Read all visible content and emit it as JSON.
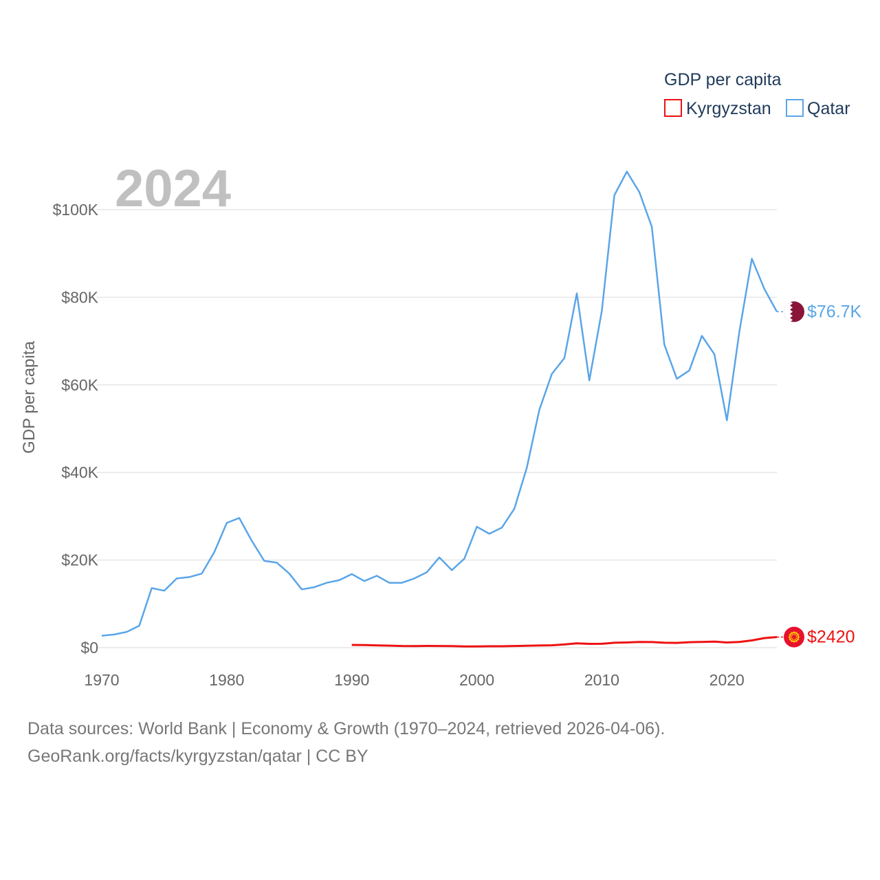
{
  "chart_data": {
    "type": "line",
    "current_year_label": "2024",
    "ylabel": "GDP per capita",
    "xlim": [
      1970,
      2024
    ],
    "ylim": [
      0,
      110000
    ],
    "y_ticks": [
      0,
      20000,
      40000,
      60000,
      80000,
      100000
    ],
    "y_tick_labels": [
      "$0",
      "$20K",
      "$40K",
      "$60K",
      "$80K",
      "$100K"
    ],
    "x_ticks": [
      1970,
      1980,
      1990,
      2000,
      2010,
      2020
    ],
    "x_tick_labels": [
      "1970",
      "1980",
      "1990",
      "2000",
      "2010",
      "2020"
    ],
    "grid": true,
    "legend": {
      "title": "GDP per capita",
      "position": "top-right",
      "items": [
        "Kyrgyzstan",
        "Qatar"
      ]
    },
    "series": [
      {
        "name": "Kyrgyzstan",
        "color": "#ee1111",
        "end_label": "$2420",
        "flag_icon": "kyrgyzstan-flag-icon",
        "x": [
          1990,
          1991,
          1992,
          1993,
          1994,
          1995,
          1996,
          1997,
          1998,
          1999,
          2000,
          2001,
          2002,
          2003,
          2004,
          2005,
          2006,
          2007,
          2008,
          2009,
          2010,
          2011,
          2012,
          2013,
          2014,
          2015,
          2016,
          2017,
          2018,
          2019,
          2020,
          2021,
          2022,
          2023,
          2024
        ],
        "values": [
          620,
          600,
          520,
          450,
          370,
          360,
          400,
          380,
          350,
          260,
          280,
          310,
          320,
          380,
          430,
          480,
          540,
          720,
          970,
          870,
          880,
          1120,
          1180,
          1280,
          1270,
          1120,
          1080,
          1240,
          1310,
          1370,
          1180,
          1280,
          1650,
          2180,
          2420
        ]
      },
      {
        "name": "Qatar",
        "color": "#5aa5e8",
        "end_label": "$76.7K",
        "flag_icon": "qatar-flag-icon",
        "x": [
          1970,
          1971,
          1972,
          1973,
          1974,
          1975,
          1976,
          1977,
          1978,
          1979,
          1980,
          1981,
          1982,
          1983,
          1984,
          1985,
          1986,
          1987,
          1988,
          1989,
          1990,
          1991,
          1992,
          1993,
          1994,
          1995,
          1996,
          1997,
          1998,
          1999,
          2000,
          2001,
          2002,
          2003,
          2004,
          2005,
          2006,
          2007,
          2008,
          2009,
          2010,
          2011,
          2012,
          2013,
          2014,
          2015,
          2016,
          2017,
          2018,
          2019,
          2020,
          2021,
          2022,
          2023,
          2024
        ],
        "values": [
          2700,
          3000,
          3600,
          5000,
          13600,
          13000,
          15800,
          16100,
          16900,
          21800,
          28500,
          29600,
          24400,
          19800,
          19400,
          16900,
          13300,
          13800,
          14800,
          15400,
          16800,
          15200,
          16400,
          14800,
          14800,
          15800,
          17200,
          20600,
          17700,
          20300,
          27600,
          26000,
          27400,
          31700,
          41100,
          54300,
          62500,
          66100,
          80900,
          61000,
          76900,
          103300,
          108700,
          104000,
          96100,
          69200,
          61400,
          63300,
          71200,
          67000,
          51900,
          72100,
          88800,
          81900,
          76700
        ]
      }
    ]
  },
  "footer": {
    "line1": "Data sources: World Bank | Economy & Growth (1970–2024, retrieved 2026-04-06).",
    "line2": "GeoRank.org/facts/kyrgyzstan/qatar | CC BY"
  }
}
